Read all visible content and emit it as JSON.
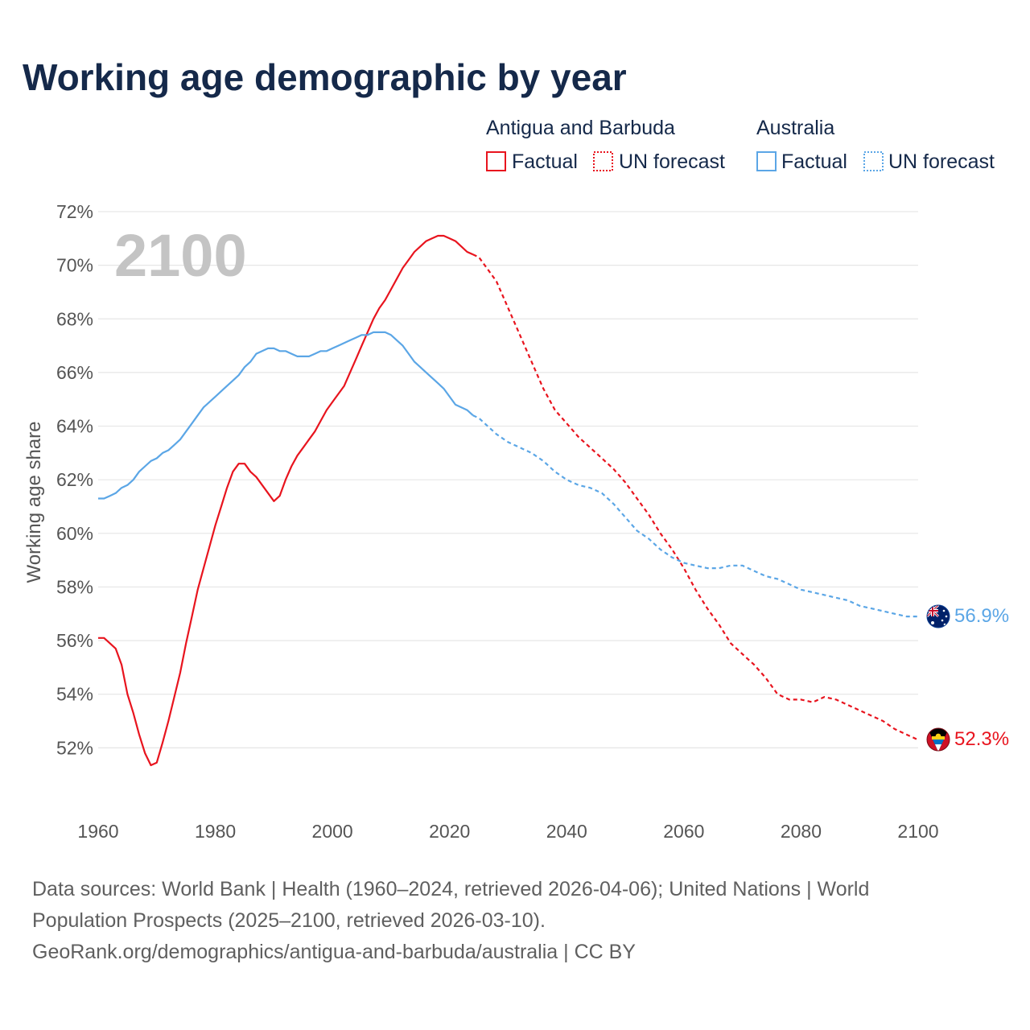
{
  "title": "Working age demographic by year",
  "year_watermark": "2100",
  "legend": {
    "groups": [
      {
        "name": "Antigua and Barbuda",
        "factual_label": "Factual",
        "forecast_label": "UN forecast",
        "color": "#e8141e"
      },
      {
        "name": "Australia",
        "factual_label": "Factual",
        "forecast_label": "UN forecast",
        "color": "#5ba6e6"
      }
    ]
  },
  "footer": {
    "line1": "Data sources: World Bank | Health (1960–2024, retrieved 2026-04-06); United Nations | World",
    "line2": "Population Prospects (2025–2100, retrieved 2026-03-10).",
    "line3": "GeoRank.org/demographics/antigua-and-barbuda/australia | CC BY"
  },
  "chart_data": {
    "type": "line",
    "title": "Working age demographic by year",
    "xlabel": "",
    "ylabel": "Working age share",
    "xlim": [
      1960,
      2100
    ],
    "ylim": [
      50,
      72
    ],
    "x_ticks": [
      "1960",
      "1980",
      "2000",
      "2020",
      "2040",
      "2060",
      "2080",
      "2100"
    ],
    "y_ticks": [
      "52%",
      "54%",
      "56%",
      "58%",
      "60%",
      "62%",
      "64%",
      "66%",
      "68%",
      "70%",
      "72%"
    ],
    "forecast_start": 2024,
    "series": [
      {
        "name": "Antigua and Barbuda",
        "color": "#e8141e",
        "end_label": "52.3%",
        "x": [
          1960,
          1961,
          1962,
          1963,
          1964,
          1965,
          1966,
          1967,
          1968,
          1969,
          1970,
          1971,
          1972,
          1973,
          1974,
          1975,
          1976,
          1977,
          1978,
          1979,
          1980,
          1981,
          1982,
          1983,
          1984,
          1985,
          1986,
          1987,
          1988,
          1989,
          1990,
          1991,
          1992,
          1993,
          1994,
          1995,
          1996,
          1997,
          1998,
          1999,
          2000,
          2001,
          2002,
          2003,
          2004,
          2005,
          2006,
          2007,
          2008,
          2009,
          2010,
          2011,
          2012,
          2013,
          2014,
          2015,
          2016,
          2017,
          2018,
          2019,
          2020,
          2021,
          2022,
          2023,
          2024,
          2025,
          2026,
          2027,
          2028,
          2030,
          2032,
          2034,
          2036,
          2038,
          2040,
          2042,
          2044,
          2046,
          2048,
          2050,
          2052,
          2054,
          2056,
          2058,
          2060,
          2062,
          2064,
          2066,
          2068,
          2070,
          2072,
          2074,
          2076,
          2078,
          2080,
          2082,
          2084,
          2086,
          2088,
          2090,
          2092,
          2094,
          2096,
          2098,
          2100
        ],
        "y": [
          56.1,
          56.1,
          55.9,
          55.7,
          55.1,
          54.0,
          53.3,
          52.5,
          51.8,
          51.35,
          51.45,
          52.2,
          53.0,
          53.9,
          54.8,
          55.9,
          56.9,
          57.9,
          58.7,
          59.5,
          60.3,
          61.0,
          61.7,
          62.3,
          62.6,
          62.6,
          62.3,
          62.1,
          61.8,
          61.5,
          61.2,
          61.4,
          62.0,
          62.5,
          62.9,
          63.2,
          63.5,
          63.8,
          64.2,
          64.6,
          64.9,
          65.2,
          65.5,
          66.0,
          66.5,
          67.0,
          67.5,
          68.0,
          68.4,
          68.7,
          69.1,
          69.5,
          69.9,
          70.2,
          70.5,
          70.7,
          70.9,
          71.0,
          71.1,
          71.1,
          71.0,
          70.9,
          70.7,
          70.5,
          70.4,
          70.3,
          70.0,
          69.7,
          69.4,
          68.4,
          67.4,
          66.4,
          65.4,
          64.6,
          64.1,
          63.6,
          63.2,
          62.8,
          62.4,
          61.9,
          61.3,
          60.7,
          60.0,
          59.4,
          58.7,
          57.9,
          57.2,
          56.6,
          55.9,
          55.5,
          55.1,
          54.6,
          54.0,
          53.8,
          53.8,
          53.7,
          53.9,
          53.8,
          53.6,
          53.4,
          53.2,
          53.0,
          52.7,
          52.5,
          52.3
        ]
      },
      {
        "name": "Australia",
        "color": "#5ba6e6",
        "end_label": "56.9%",
        "x": [
          1960,
          1961,
          1962,
          1963,
          1964,
          1965,
          1966,
          1967,
          1968,
          1969,
          1970,
          1971,
          1972,
          1973,
          1974,
          1975,
          1976,
          1977,
          1978,
          1979,
          1980,
          1981,
          1982,
          1983,
          1984,
          1985,
          1986,
          1987,
          1988,
          1989,
          1990,
          1991,
          1992,
          1993,
          1994,
          1995,
          1996,
          1997,
          1998,
          1999,
          2000,
          2001,
          2002,
          2003,
          2004,
          2005,
          2006,
          2007,
          2008,
          2009,
          2010,
          2011,
          2012,
          2013,
          2014,
          2015,
          2016,
          2017,
          2018,
          2019,
          2020,
          2021,
          2022,
          2023,
          2024,
          2025,
          2026,
          2027,
          2028,
          2030,
          2032,
          2034,
          2036,
          2038,
          2040,
          2042,
          2044,
          2046,
          2048,
          2050,
          2052,
          2054,
          2056,
          2058,
          2060,
          2062,
          2064,
          2066,
          2068,
          2070,
          2072,
          2074,
          2076,
          2078,
          2080,
          2082,
          2084,
          2086,
          2088,
          2090,
          2092,
          2094,
          2096,
          2098,
          2100
        ],
        "y": [
          61.3,
          61.3,
          61.4,
          61.5,
          61.7,
          61.8,
          62.0,
          62.3,
          62.5,
          62.7,
          62.8,
          63.0,
          63.1,
          63.3,
          63.5,
          63.8,
          64.1,
          64.4,
          64.7,
          64.9,
          65.1,
          65.3,
          65.5,
          65.7,
          65.9,
          66.2,
          66.4,
          66.7,
          66.8,
          66.9,
          66.9,
          66.8,
          66.8,
          66.7,
          66.6,
          66.6,
          66.6,
          66.7,
          66.8,
          66.8,
          66.9,
          67.0,
          67.1,
          67.2,
          67.3,
          67.4,
          67.4,
          67.5,
          67.5,
          67.5,
          67.4,
          67.2,
          67.0,
          66.7,
          66.4,
          66.2,
          66.0,
          65.8,
          65.6,
          65.4,
          65.1,
          64.8,
          64.7,
          64.6,
          64.4,
          64.3,
          64.1,
          63.9,
          63.7,
          63.4,
          63.2,
          63.0,
          62.7,
          62.3,
          62.0,
          61.8,
          61.7,
          61.5,
          61.1,
          60.6,
          60.1,
          59.8,
          59.4,
          59.1,
          58.9,
          58.8,
          58.7,
          58.7,
          58.8,
          58.8,
          58.6,
          58.4,
          58.3,
          58.1,
          57.9,
          57.8,
          57.7,
          57.6,
          57.5,
          57.3,
          57.2,
          57.1,
          57.0,
          56.9,
          56.9
        ]
      }
    ]
  }
}
